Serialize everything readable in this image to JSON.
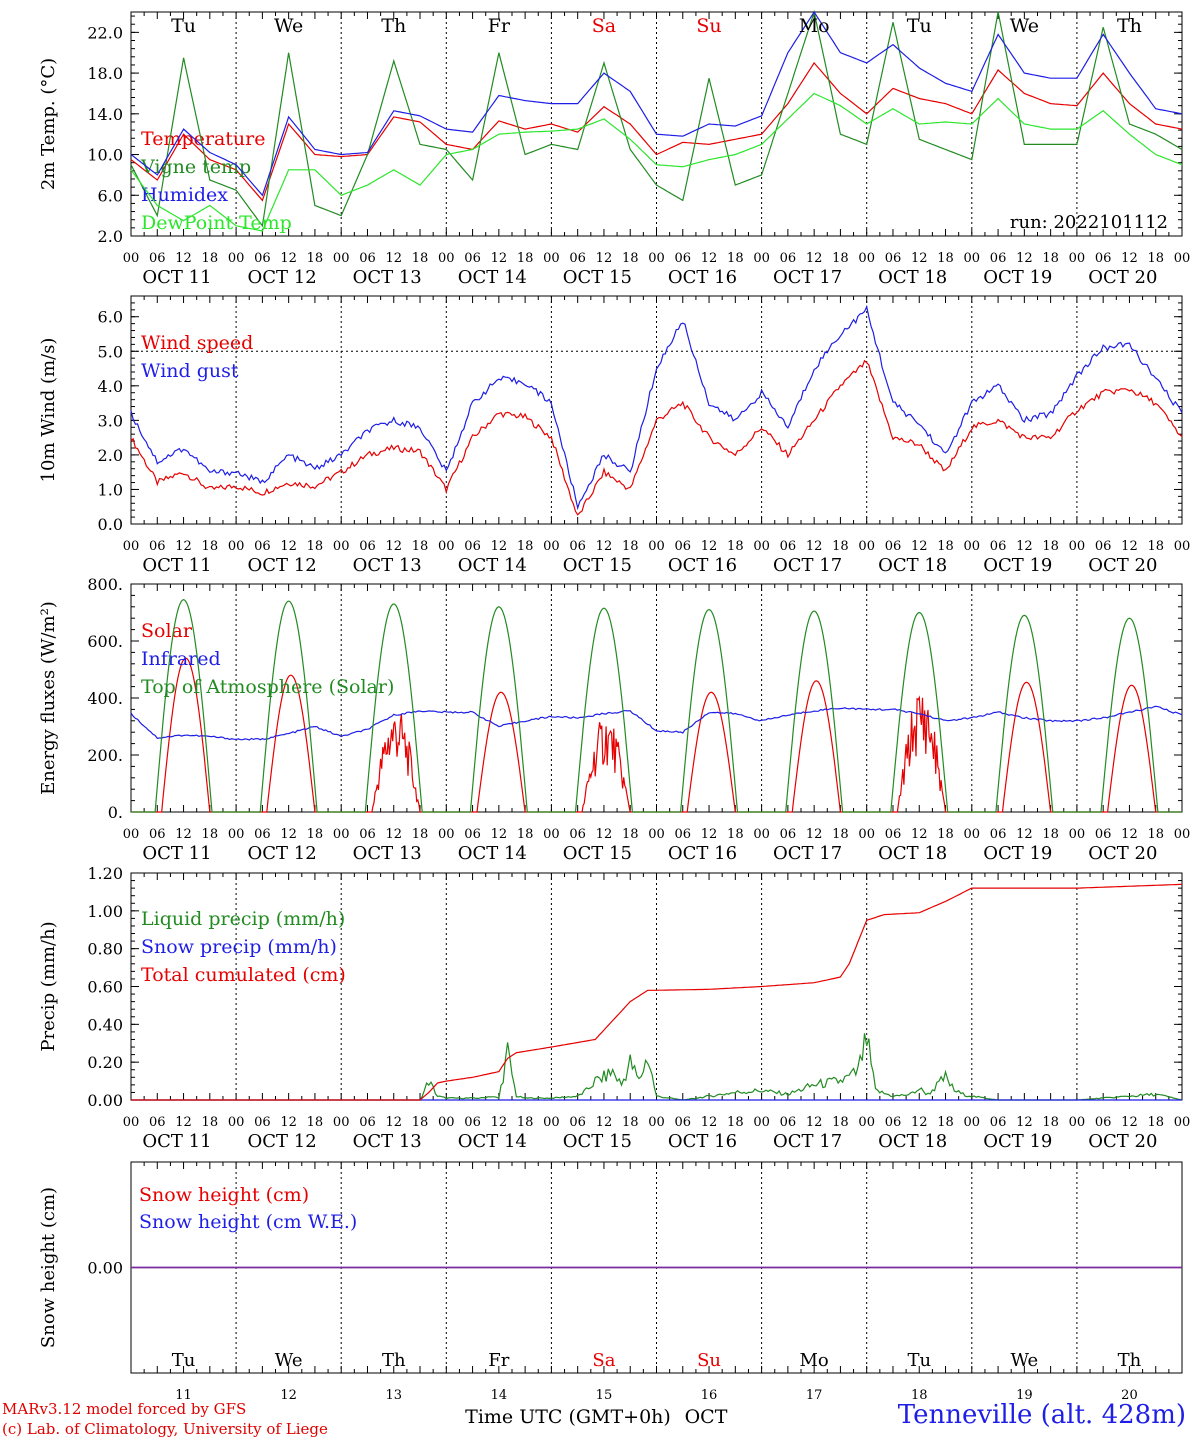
{
  "run_label": "run: 2022101112",
  "days": [
    "Tu",
    "We",
    "Th",
    "Fr",
    "Sa",
    "Su",
    "Mo",
    "Tu",
    "We",
    "Th"
  ],
  "weekend_day_indices": [
    4,
    5
  ],
  "dates": [
    "OCT 11",
    "OCT 12",
    "OCT 13",
    "OCT 14",
    "OCT 15",
    "OCT 16",
    "OCT 17",
    "OCT 18",
    "OCT 19",
    "OCT 20"
  ],
  "day_numbers": [
    "11",
    "12",
    "13",
    "14",
    "15",
    "16",
    "17",
    "18",
    "19",
    "20"
  ],
  "hour_ticks": [
    "00",
    "06",
    "12",
    "18"
  ],
  "end_tick": "00",
  "xlabel": "Time UTC (GMT+0h)",
  "xlabel_month": "OCT",
  "credits": [
    "MARv3.12 model forced by GFS",
    "(c) Lab. of Climatology, University of Liege"
  ],
  "station": "Tenneville (alt. 428m)",
  "colors": {
    "red": "#e60000",
    "green": "#228b22",
    "blue": "#1e1ee6",
    "light_green": "#2ce62c",
    "purple": "#7a2aa0"
  },
  "chart_data": [
    {
      "type": "line",
      "ylabel": "2m Temp. (°C)",
      "ylim": [
        2,
        24
      ],
      "yticks": [
        "2.0",
        "6.0",
        "10.0",
        "14.0",
        "18.0",
        "22.0"
      ],
      "ytick_values": [
        2,
        6,
        10,
        14,
        18,
        22
      ],
      "x_unit": "hours since 2022-10-11 00 UTC",
      "xlim": [
        0,
        240
      ],
      "series": [
        {
          "name": "Temperature",
          "color": "#e60000",
          "x": [
            0,
            6,
            12,
            18,
            24,
            30,
            36,
            42,
            48,
            54,
            60,
            66,
            72,
            78,
            84,
            90,
            96,
            102,
            108,
            114,
            120,
            126,
            132,
            138,
            144,
            150,
            156,
            162,
            168,
            174,
            180,
            186,
            192,
            198,
            204,
            210,
            216,
            222,
            228,
            234,
            240
          ],
          "values": [
            9.5,
            7.5,
            12,
            9.5,
            8.5,
            5.5,
            13,
            10,
            9.8,
            10,
            13.7,
            13.2,
            11,
            10.5,
            13.3,
            12.5,
            13,
            12.2,
            14.7,
            13,
            10,
            11.2,
            11,
            11.5,
            12,
            15,
            19,
            16,
            14,
            16.5,
            15.5,
            15,
            14,
            18.3,
            16,
            15,
            14.8,
            18,
            15,
            13,
            12.5
          ]
        },
        {
          "name": "Vigne temp",
          "color": "#228b22",
          "x": [
            0,
            6,
            12,
            18,
            24,
            30,
            36,
            42,
            48,
            54,
            60,
            66,
            72,
            78,
            84,
            90,
            96,
            102,
            108,
            114,
            120,
            126,
            132,
            138,
            144,
            150,
            156,
            162,
            168,
            174,
            180,
            186,
            192,
            198,
            204,
            210,
            216,
            222,
            228,
            234,
            240
          ],
          "values": [
            9,
            4,
            19.5,
            7.5,
            6.5,
            3,
            20,
            5,
            4,
            10,
            19.2,
            11,
            10.5,
            7.5,
            20,
            10,
            11,
            10.5,
            19,
            10.5,
            7,
            5.5,
            17.5,
            7,
            8,
            16,
            24,
            12,
            11,
            23,
            11.5,
            10.5,
            9.5,
            24,
            11,
            11,
            11,
            22.5,
            13,
            12,
            10.5
          ]
        },
        {
          "name": "Humidex",
          "color": "#1e1ee6",
          "x": [
            0,
            6,
            12,
            18,
            24,
            30,
            36,
            42,
            48,
            54,
            60,
            66,
            72,
            78,
            84,
            90,
            96,
            102,
            108,
            114,
            120,
            126,
            132,
            138,
            144,
            150,
            156,
            162,
            168,
            174,
            180,
            186,
            192,
            198,
            204,
            210,
            216,
            222,
            228,
            234,
            240
          ],
          "values": [
            10,
            8,
            12.5,
            10.2,
            9,
            6,
            13.7,
            10.5,
            10,
            10.2,
            14.3,
            13.8,
            12.5,
            12.2,
            15.8,
            15.3,
            15,
            15,
            18,
            16.2,
            12,
            11.8,
            13,
            12.8,
            13.8,
            20,
            24,
            20,
            19,
            20.8,
            18.5,
            17,
            16.2,
            21.8,
            18,
            17.5,
            17.5,
            21.8,
            18,
            14.5,
            14
          ]
        },
        {
          "name": "DewPoint Temp",
          "color": "#2ce62c",
          "x": [
            0,
            6,
            12,
            18,
            24,
            30,
            36,
            42,
            48,
            54,
            60,
            66,
            72,
            78,
            84,
            90,
            96,
            102,
            108,
            114,
            120,
            126,
            132,
            138,
            144,
            150,
            156,
            162,
            168,
            174,
            180,
            186,
            192,
            198,
            204,
            210,
            216,
            222,
            228,
            234,
            240
          ],
          "values": [
            8.5,
            5,
            3.5,
            5,
            3,
            2.5,
            8.5,
            8.5,
            6,
            7,
            8.5,
            7,
            10,
            10.5,
            12,
            12.2,
            12.3,
            12.5,
            13.5,
            11.5,
            9,
            8.8,
            9.5,
            10,
            11,
            13.5,
            16,
            14.8,
            13,
            14.5,
            13,
            13.2,
            13,
            15.5,
            13,
            12.5,
            12.5,
            14.3,
            12,
            10,
            9
          ]
        }
      ]
    },
    {
      "type": "line",
      "ylabel": "10m Wind (m/s)",
      "ylim": [
        0,
        6.6
      ],
      "yticks": [
        "0.0",
        "1.0",
        "2.0",
        "3.0",
        "4.0",
        "5.0",
        "6.0"
      ],
      "ytick_values": [
        0,
        1,
        2,
        3,
        4,
        5,
        6
      ],
      "reference_line": 5.0,
      "xlim": [
        0,
        240
      ],
      "series": [
        {
          "name": "Wind speed",
          "color": "#e60000",
          "x": [
            0,
            6,
            12,
            18,
            24,
            30,
            36,
            42,
            48,
            54,
            60,
            66,
            72,
            78,
            84,
            90,
            96,
            102,
            108,
            114,
            120,
            126,
            132,
            138,
            144,
            150,
            156,
            162,
            168,
            174,
            180,
            186,
            192,
            198,
            204,
            210,
            216,
            222,
            228,
            234,
            240
          ],
          "values": [
            2.5,
            1.2,
            1.5,
            1,
            1.1,
            0.9,
            1.2,
            1.1,
            1.5,
            2,
            2.2,
            2.1,
            1,
            2.5,
            3.2,
            3.1,
            2.5,
            0.2,
            1.5,
            1,
            3,
            3.5,
            2.5,
            2,
            2.8,
            2,
            3,
            4,
            4.7,
            2.5,
            2.3,
            1.5,
            2.8,
            3,
            2.5,
            2.5,
            3.3,
            3.8,
            3.9,
            3.5,
            2.5
          ]
        },
        {
          "name": "Wind gust",
          "color": "#1e1ee6",
          "x": [
            0,
            6,
            12,
            18,
            24,
            30,
            36,
            42,
            48,
            54,
            60,
            66,
            72,
            78,
            84,
            90,
            96,
            102,
            108,
            114,
            120,
            126,
            132,
            138,
            144,
            150,
            156,
            162,
            168,
            174,
            180,
            186,
            192,
            198,
            204,
            210,
            216,
            222,
            228,
            234,
            240
          ],
          "values": [
            3.2,
            1.8,
            2.2,
            1.5,
            1.5,
            1.2,
            2,
            1.6,
            2,
            2.7,
            3,
            2.8,
            1.5,
            3.5,
            4.2,
            4.1,
            3.5,
            0.5,
            2,
            1.5,
            4.5,
            5.9,
            3.5,
            3,
            3.8,
            2.8,
            4.5,
            5.5,
            6.2,
            3.5,
            2.9,
            2,
            3.5,
            4,
            3,
            3.2,
            4.3,
            5.1,
            5.2,
            4.2,
            3.2
          ]
        }
      ]
    },
    {
      "type": "line",
      "ylabel": "Energy fluxes (W/m²)",
      "ylim": [
        0,
        800
      ],
      "yticks": [
        "0.",
        "200.",
        "400.",
        "600.",
        "800."
      ],
      "ytick_values": [
        0,
        200,
        400,
        600,
        800
      ],
      "xlim": [
        0,
        240
      ],
      "series": [
        {
          "name": "Solar",
          "color": "#e60000",
          "daily_peak_hour": 12.5,
          "daily_peaks": [
            540,
            480,
            380,
            420,
            350,
            420,
            460,
            450,
            455,
            445
          ]
        },
        {
          "name": "Infrared",
          "color": "#1e1ee6",
          "x": [
            0,
            6,
            12,
            18,
            24,
            30,
            36,
            42,
            48,
            54,
            60,
            66,
            72,
            78,
            84,
            90,
            96,
            102,
            108,
            114,
            120,
            126,
            132,
            138,
            144,
            150,
            156,
            162,
            168,
            174,
            180,
            186,
            192,
            198,
            204,
            210,
            216,
            222,
            228,
            234,
            240
          ],
          "values": [
            345,
            260,
            270,
            265,
            255,
            255,
            275,
            300,
            265,
            290,
            340,
            355,
            350,
            350,
            300,
            320,
            335,
            330,
            345,
            355,
            285,
            280,
            350,
            345,
            320,
            340,
            355,
            365,
            360,
            360,
            345,
            320,
            330,
            350,
            330,
            320,
            320,
            330,
            350,
            370,
            340
          ]
        },
        {
          "name": "Top of Atmosphere (Solar)",
          "color": "#228b22",
          "daily_peak_hour": 12,
          "daily_peaks": [
            745,
            740,
            730,
            720,
            715,
            710,
            705,
            700,
            690,
            680
          ]
        }
      ]
    },
    {
      "type": "line",
      "ylabel": "Precip (mm/h)",
      "ylim": [
        0,
        1.2
      ],
      "yticks": [
        "0.00",
        "0.20",
        "0.40",
        "0.60",
        "0.80",
        "1.00",
        "1.20"
      ],
      "ytick_values": [
        0,
        0.2,
        0.4,
        0.6,
        0.8,
        1.0,
        1.2
      ],
      "xlim": [
        0,
        240
      ],
      "series": [
        {
          "name": "Liquid precip (mm/h)",
          "color": "#228b22",
          "x": [
            0,
            66,
            68,
            70,
            72,
            74,
            78,
            80,
            82,
            84,
            86,
            88,
            90,
            96,
            102,
            104,
            106,
            108,
            110,
            112,
            114,
            116,
            118,
            120,
            126,
            132,
            138,
            144,
            150,
            156,
            162,
            164,
            166,
            168,
            170,
            174,
            178,
            180,
            182,
            186,
            188,
            190,
            192,
            198,
            204,
            216,
            228,
            234,
            240
          ],
          "values": [
            0,
            0,
            0.1,
            0.02,
            0.01,
            0.01,
            0.01,
            0.01,
            0.02,
            0.01,
            0.25,
            0.02,
            0.01,
            0.01,
            0.02,
            0.05,
            0.1,
            0.12,
            0.15,
            0.08,
            0.2,
            0.1,
            0.23,
            0.02,
            0,
            0.02,
            0.04,
            0.05,
            0.03,
            0.08,
            0.1,
            0.12,
            0.15,
            0.32,
            0.05,
            0.02,
            0.03,
            0.06,
            0.03,
            0.12,
            0.05,
            0.03,
            0.02,
            0,
            0,
            0,
            0.02,
            0.03,
            0
          ]
        },
        {
          "name": "Snow precip (mm/h)",
          "color": "#1e1ee6",
          "x": [
            0,
            240
          ],
          "values": [
            0,
            0
          ]
        },
        {
          "name": "Total cumulated (cm)",
          "color": "#e60000",
          "x": [
            0,
            66,
            68,
            70,
            72,
            78,
            84,
            86,
            88,
            96,
            106,
            108,
            110,
            114,
            118,
            120,
            132,
            144,
            150,
            156,
            162,
            164,
            168,
            172,
            180,
            186,
            192,
            204,
            216,
            228,
            240
          ],
          "values": [
            0,
            0,
            0.04,
            0.09,
            0.1,
            0.12,
            0.15,
            0.22,
            0.25,
            0.28,
            0.32,
            0.37,
            0.42,
            0.52,
            0.58,
            0.58,
            0.585,
            0.6,
            0.61,
            0.62,
            0.65,
            0.72,
            0.95,
            0.98,
            0.99,
            1.05,
            1.12,
            1.12,
            1.12,
            1.13,
            1.14
          ]
        }
      ]
    },
    {
      "type": "line",
      "ylabel": "Snow height (cm)",
      "ylim": [
        -1,
        1
      ],
      "yticks": [
        "0.00"
      ],
      "ytick_values": [
        0
      ],
      "xlim": [
        0,
        240
      ],
      "series": [
        {
          "name": "Snow height (cm)",
          "color": "#e60000",
          "x": [
            0,
            240
          ],
          "values": [
            0,
            0
          ]
        },
        {
          "name": "Snow height (cm W.E.)",
          "color": "#1e1ee6",
          "x": [
            0,
            240
          ],
          "values": [
            0,
            0
          ]
        }
      ]
    }
  ]
}
